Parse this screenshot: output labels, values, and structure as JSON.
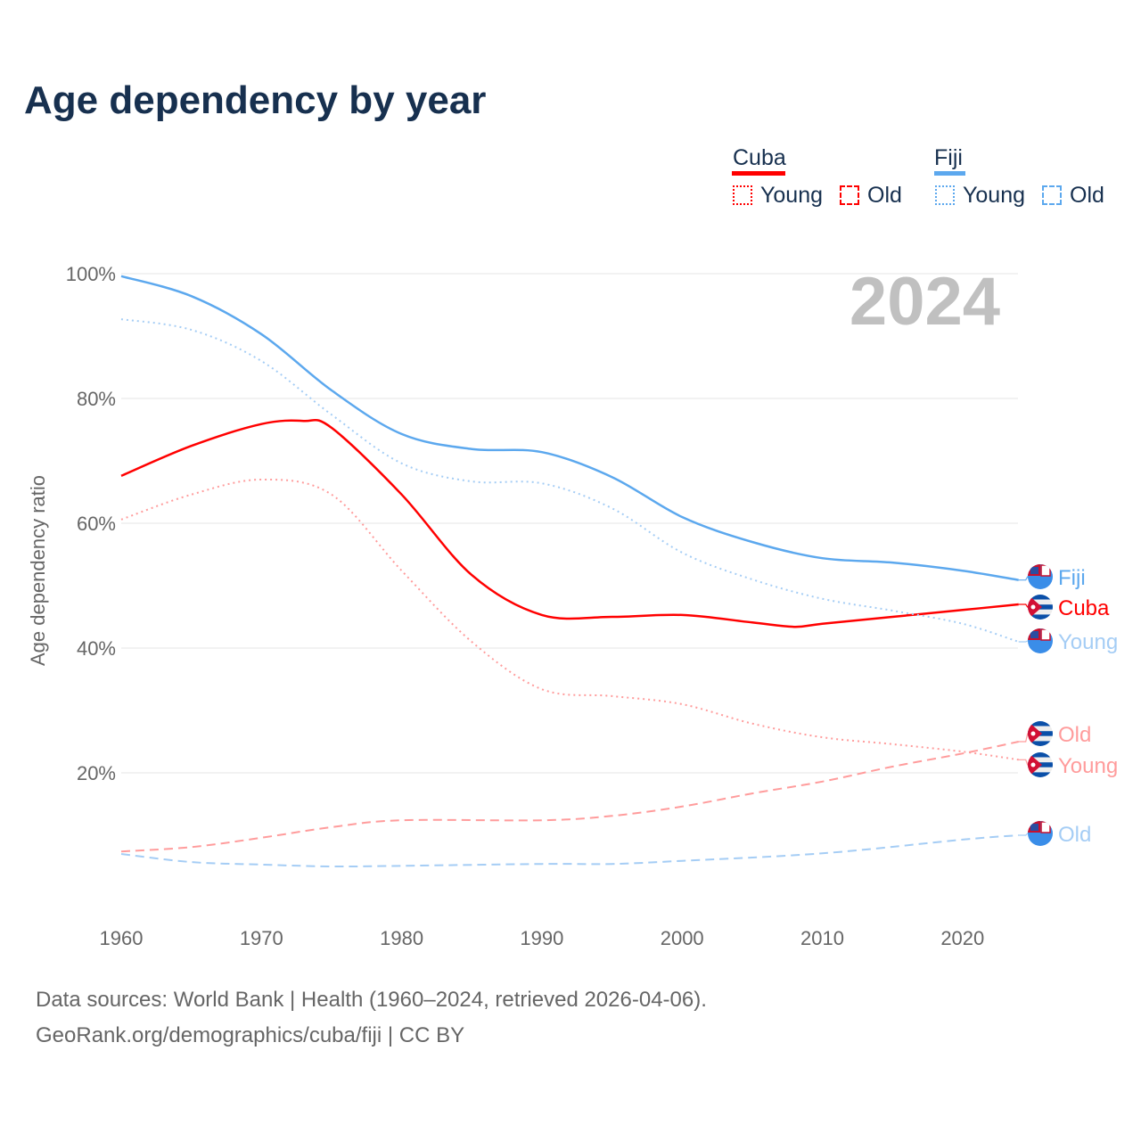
{
  "title": "Age dependency by year",
  "year_label": "2024",
  "legend": {
    "cuba": "Cuba",
    "fiji": "Fiji",
    "young": "Young",
    "old": "Old"
  },
  "footer": {
    "line1": "Data sources: World Bank | Health (1960–2024, retrieved 2026-04-06).",
    "line2": "GeoRank.org/demographics/cuba/fiji | CC BY"
  },
  "colors": {
    "cuba": "#ff0000",
    "cuba_light": "#ff9c9c",
    "fiji": "#5ca8ee",
    "fiji_light": "#a5cdf5"
  },
  "chart_data": {
    "type": "line",
    "title": "Age dependency by year",
    "ylabel": "Age dependency ratio",
    "xlim": [
      1960,
      2024
    ],
    "ylim": [
      0,
      100
    ],
    "xticks": [
      1960,
      1970,
      1980,
      1990,
      2000,
      2010,
      2020
    ],
    "xtick_labels": [
      "1960",
      "1970",
      "1980",
      "1990",
      "2000",
      "2010",
      "2020"
    ],
    "yticks": [
      20,
      40,
      60,
      80,
      100
    ],
    "ytick_labels": [
      "20%",
      "40%",
      "60%",
      "80%",
      "100%"
    ],
    "series": [
      {
        "name": "Fiji",
        "label": "Fiji",
        "style": "solid",
        "color": "#5ca8ee",
        "x": [
          1960,
          1965,
          1970,
          1975,
          1980,
          1985,
          1990,
          1995,
          2000,
          2005,
          2010,
          2015,
          2020,
          2024
        ],
        "values": [
          99.6,
          96.4,
          90.3,
          81.3,
          74.3,
          71.9,
          71.4,
          67.4,
          61,
          57,
          54.4,
          53.7,
          52.4,
          50.9
        ]
      },
      {
        "name": "Cuba",
        "label": "Cuba",
        "style": "solid",
        "color": "#ff0000",
        "x": [
          1960,
          1965,
          1970,
          1973,
          1975,
          1980,
          1985,
          1990,
          1995,
          2000,
          2005,
          2008,
          2010,
          2015,
          2020,
          2024
        ],
        "values": [
          67.6,
          72.4,
          75.9,
          76.4,
          75.3,
          64.6,
          51.7,
          45.3,
          45,
          45.3,
          44.1,
          43.4,
          43.9,
          45,
          46.1,
          47
        ]
      },
      {
        "name": "Fiji Young",
        "label": "Young",
        "style": "dotted",
        "color": "#a5cdf5",
        "x": [
          1960,
          1965,
          1970,
          1975,
          1980,
          1985,
          1990,
          1995,
          2000,
          2005,
          2010,
          2015,
          2020,
          2024
        ],
        "values": [
          92.7,
          91,
          86,
          77.4,
          69.6,
          66.7,
          66.4,
          62.4,
          55.3,
          51,
          47.9,
          46,
          43.9,
          41
        ]
      },
      {
        "name": "Cuba Old",
        "label": "Old",
        "style": "dashed",
        "color": "#ff9c9c",
        "x": [
          1960,
          1965,
          1970,
          1975,
          1980,
          1990,
          1995,
          2000,
          2005,
          2010,
          2015,
          2020,
          2024
        ],
        "values": [
          7.4,
          8.1,
          9.6,
          11.3,
          12.4,
          12.4,
          13.1,
          14.6,
          16.7,
          18.6,
          21,
          23.1,
          25
        ]
      },
      {
        "name": "Cuba Young",
        "label": "Young",
        "style": "dotted",
        "color": "#ff9c9c",
        "x": [
          1960,
          1965,
          1970,
          1975,
          1980,
          1985,
          1990,
          1995,
          2000,
          2005,
          2010,
          2015,
          2020,
          2024
        ],
        "values": [
          60.6,
          64.6,
          67,
          64.6,
          52.4,
          41,
          33.4,
          32.3,
          31,
          27.9,
          25.7,
          24.6,
          23.4,
          22.1
        ]
      },
      {
        "name": "Fiji Old",
        "label": "Old",
        "style": "dashed",
        "color": "#a5cdf5",
        "x": [
          1960,
          1965,
          1970,
          1975,
          1980,
          1990,
          1995,
          2000,
          2010,
          2020,
          2024
        ],
        "values": [
          7,
          5.7,
          5.3,
          5,
          5.1,
          5.4,
          5.4,
          5.9,
          7.1,
          9.3,
          10
        ]
      }
    ]
  }
}
